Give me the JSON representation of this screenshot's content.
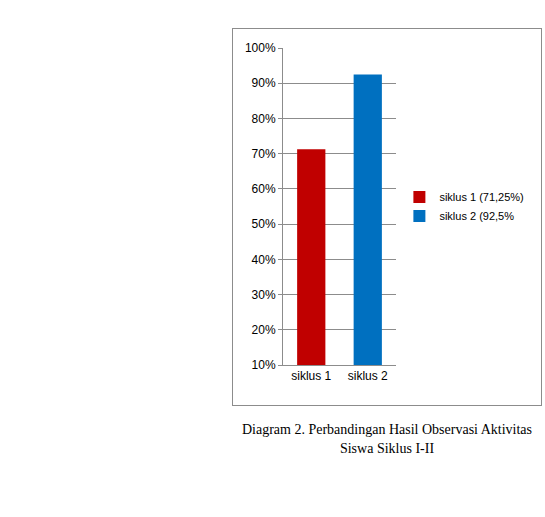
{
  "chart_data": {
    "type": "bar",
    "categories": [
      "siklus 1",
      "siklus 2"
    ],
    "series": [
      {
        "name": "siklus 1 (71,25%)",
        "color": "#c00000",
        "values": [
          71.25,
          null
        ]
      },
      {
        "name": "siklus 2 (92,5%",
        "color": "#0070c0",
        "values": [
          null,
          92.5
        ]
      }
    ],
    "ylim": [
      10,
      100
    ],
    "yticks": [
      {
        "value": 10,
        "label": "10%"
      },
      {
        "value": 20,
        "label": "20%"
      },
      {
        "value": 30,
        "label": "30%"
      },
      {
        "value": 40,
        "label": "40%"
      },
      {
        "value": 50,
        "label": "50%"
      },
      {
        "value": 60,
        "label": "60%"
      },
      {
        "value": 70,
        "label": "70%"
      },
      {
        "value": 80,
        "label": "80%"
      },
      {
        "value": 90,
        "label": "90%"
      },
      {
        "value": 100,
        "label": "100%"
      }
    ],
    "grid": true,
    "legend": "right"
  },
  "caption": [
    "Diagram 2. Perbandingan Hasil Observasi Aktivitas",
    "Siswa Siklus I-II"
  ]
}
